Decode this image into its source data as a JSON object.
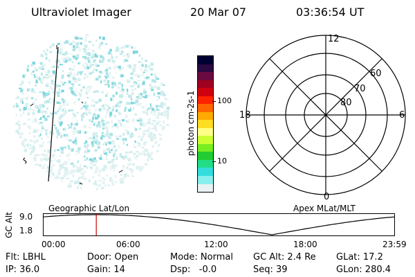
{
  "header": {
    "title": "Ultraviolet Imager",
    "date": "20 Mar 07",
    "time": "03:36:54 UT"
  },
  "colorbar": {
    "unit_label": "photon cm-2s-1",
    "ticks": [
      "100",
      "10"
    ],
    "colors_top_to_bottom": [
      "#000033",
      "#2a0a40",
      "#6a0a40",
      "#a00020",
      "#d00010",
      "#ff2200",
      "#ff6600",
      "#ffaa00",
      "#ffdd22",
      "#ffff88",
      "#ccff33",
      "#77ee22",
      "#22cc33",
      "#22dd88",
      "#33dddd",
      "#88eeee",
      "#e8f2f2"
    ]
  },
  "polar_plot": {
    "mlt_labels": {
      "top": "12",
      "left": "18",
      "right": "6",
      "bottom": "0"
    },
    "lat_labels": [
      "60",
      "70",
      "80"
    ]
  },
  "orbit_panel": {
    "left_caption": "Geographic Lat/Lon",
    "right_caption": "Apex MLat/MLT",
    "y_axis_title": "GC Alt",
    "y_ticks": [
      "9.0",
      "1.8"
    ],
    "x_ticks": [
      "00:00",
      "06:00",
      "12:00",
      "18:00",
      "23:59"
    ],
    "current_time_marker_hours": 3.6
  },
  "info_rows": [
    [
      "Flt: LBHL",
      "Door: Open",
      "Mode: Normal",
      "GC Alt: 2.4 Re",
      "GLat: 17.2"
    ],
    [
      "IP: 36.0",
      "Gain: 14",
      "Dsp:   -0.0",
      "Seq: 39",
      "GLon: 280.4"
    ]
  ],
  "accent_colors": {
    "marker": "#cc0000",
    "speckle": "#7fd6dc"
  }
}
